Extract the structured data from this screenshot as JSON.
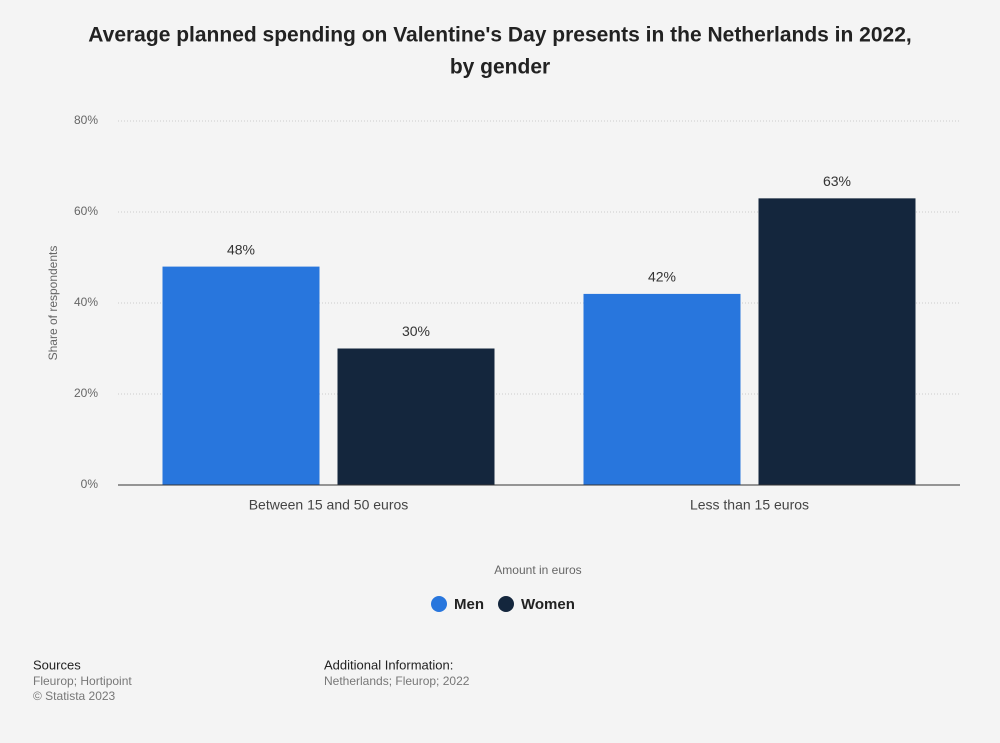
{
  "chart_data": {
    "type": "bar",
    "title": "Average planned spending on Valentine's Day presents in the Netherlands in 2022,",
    "subtitle": "by gender",
    "x_label": "Amount in euros",
    "y_label": "Share of respondents",
    "categories": [
      "Between 15 and 50 euros",
      "Less than 15 euros"
    ],
    "series": [
      {
        "name": "Men",
        "color": "#2876dd",
        "values": [
          48,
          42
        ],
        "value_labels": [
          "48%",
          "42%"
        ]
      },
      {
        "name": "Women",
        "color": "#14263d",
        "values": [
          30,
          63
        ],
        "value_labels": [
          "30%",
          "63%"
        ]
      }
    ],
    "ylim": [
      0,
      80
    ],
    "yticks": [
      {
        "value": 0,
        "label": "0%"
      },
      {
        "value": 20,
        "label": "20%"
      },
      {
        "value": 40,
        "label": "40%"
      },
      {
        "value": 60,
        "label": "60%"
      },
      {
        "value": 80,
        "label": "80%"
      }
    ],
    "grid": true,
    "legend": "bottom"
  },
  "footer": {
    "sources_title": "Sources",
    "sources": "Fleurop; Hortipoint",
    "copyright": "© Statista 2023",
    "info_title": "Additional Information:",
    "info": "Netherlands; Fleurop; 2022"
  }
}
